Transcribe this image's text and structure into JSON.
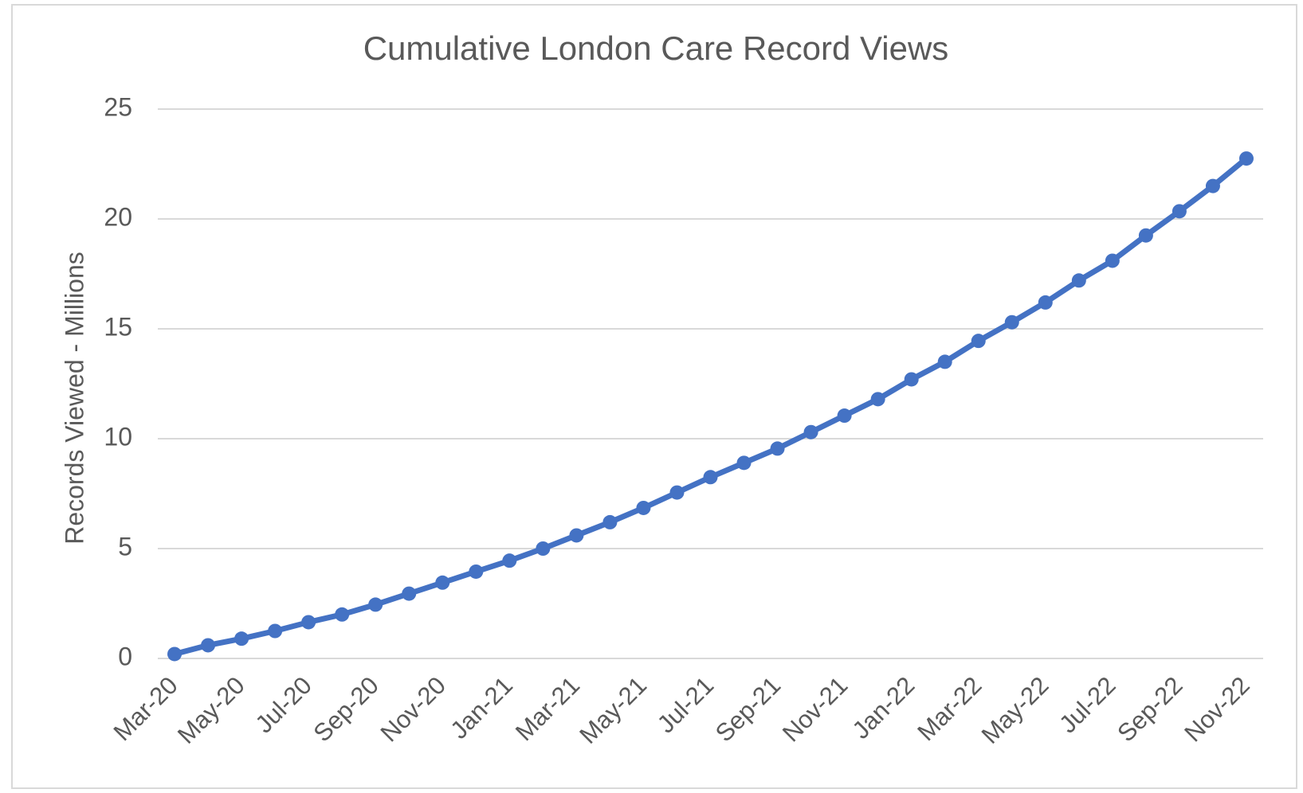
{
  "chart_data": {
    "type": "line",
    "title": "Cumulative London Care Record Views",
    "y_label": "Records Viewed - Millions",
    "categories": [
      "Mar-20",
      null,
      "May-20",
      null,
      "Jul-20",
      null,
      "Sep-20",
      null,
      "Nov-20",
      null,
      "Jan-21",
      null,
      "Mar-21",
      null,
      "May-21",
      null,
      "Jul-21",
      null,
      "Sep-21",
      null,
      "Nov-21",
      null,
      "Jan-22",
      null,
      "Mar-22",
      null,
      "May-22",
      null,
      "Jul-22",
      null,
      "Sep-22",
      null,
      "Nov-22"
    ],
    "series": [
      {
        "name": "Records Viewed",
        "color": "#4472c4",
        "values": [
          0.2,
          0.6,
          0.9,
          1.25,
          1.65,
          2.0,
          2.45,
          2.95,
          3.45,
          3.95,
          4.45,
          5.0,
          5.6,
          6.2,
          6.85,
          7.55,
          8.25,
          8.9,
          9.55,
          10.3,
          11.05,
          11.8,
          12.7,
          13.5,
          14.45,
          15.3,
          16.2,
          17.2,
          18.1,
          19.25,
          20.35,
          21.5,
          22.75
        ]
      }
    ],
    "ylim": [
      0,
      25
    ],
    "yticks": [
      0,
      5,
      10,
      15,
      20,
      25
    ],
    "grid": true
  }
}
